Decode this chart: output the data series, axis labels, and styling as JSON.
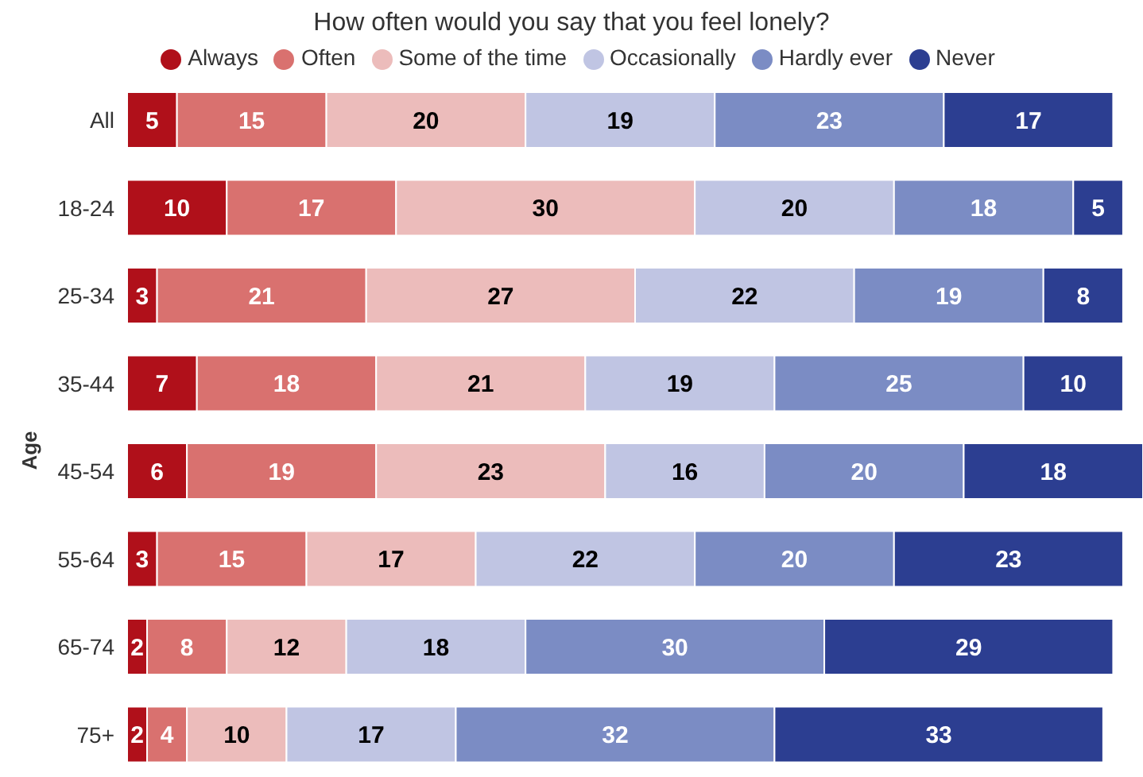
{
  "chart_data": {
    "type": "bar",
    "orientation": "horizontal",
    "stacked": true,
    "title": "How often would you say that you feel lonely?",
    "ylabel": "Age",
    "categories": [
      "All",
      "18-24",
      "25-34",
      "35-44",
      "45-54",
      "55-64",
      "65-74",
      "75+"
    ],
    "series": [
      {
        "name": "Always",
        "color": "#b0101a",
        "values": [
          5,
          10,
          3,
          7,
          6,
          3,
          2,
          2
        ]
      },
      {
        "name": "Often",
        "color": "#d9716f",
        "values": [
          15,
          17,
          21,
          18,
          19,
          15,
          8,
          4
        ]
      },
      {
        "name": "Some of the time",
        "color": "#ecbcbb",
        "values": [
          20,
          30,
          27,
          21,
          23,
          17,
          12,
          10
        ]
      },
      {
        "name": "Occasionally",
        "color": "#c0c5e3",
        "values": [
          19,
          20,
          22,
          19,
          16,
          22,
          18,
          17
        ]
      },
      {
        "name": "Hardly ever",
        "color": "#7b8cc4",
        "values": [
          23,
          18,
          19,
          25,
          20,
          20,
          30,
          32
        ]
      },
      {
        "name": "Never",
        "color": "#2c3e91",
        "values": [
          17,
          5,
          8,
          10,
          18,
          23,
          29,
          33
        ]
      }
    ],
    "data_labels": true,
    "legend": "top"
  }
}
